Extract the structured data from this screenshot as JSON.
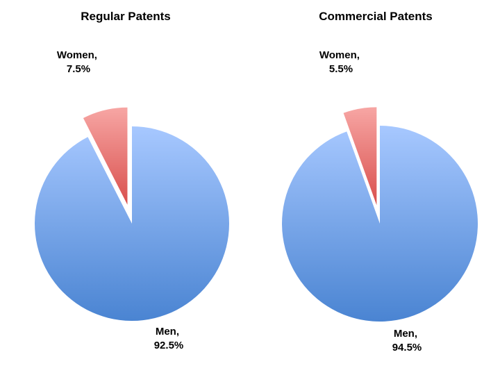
{
  "chart_data": [
    {
      "type": "pie",
      "title": "Regular Patents",
      "slices": [
        {
          "name": "Women",
          "value": 7.5,
          "label_line1": "Women,",
          "label_line2": "7.5%",
          "exploded": true
        },
        {
          "name": "Men",
          "value": 92.5,
          "label_line1": "Men,",
          "label_line2": "92.5%",
          "exploded": false
        }
      ],
      "colors": {
        "Women": [
          "#f7a6a4",
          "#d9504d"
        ],
        "Men": [
          "#a7c8ff",
          "#4a84d2"
        ]
      },
      "legend": "none"
    },
    {
      "type": "pie",
      "title": "Commercial Patents",
      "slices": [
        {
          "name": "Women",
          "value": 5.5,
          "label_line1": "Women,",
          "label_line2": "5.5%",
          "exploded": true
        },
        {
          "name": "Men",
          "value": 94.5,
          "label_line1": "Men,",
          "label_line2": "94.5%",
          "exploded": false
        }
      ],
      "colors": {
        "Women": [
          "#f7a6a4",
          "#d9504d"
        ],
        "Men": [
          "#a7c8ff",
          "#4a84d2"
        ]
      },
      "legend": "none"
    }
  ]
}
